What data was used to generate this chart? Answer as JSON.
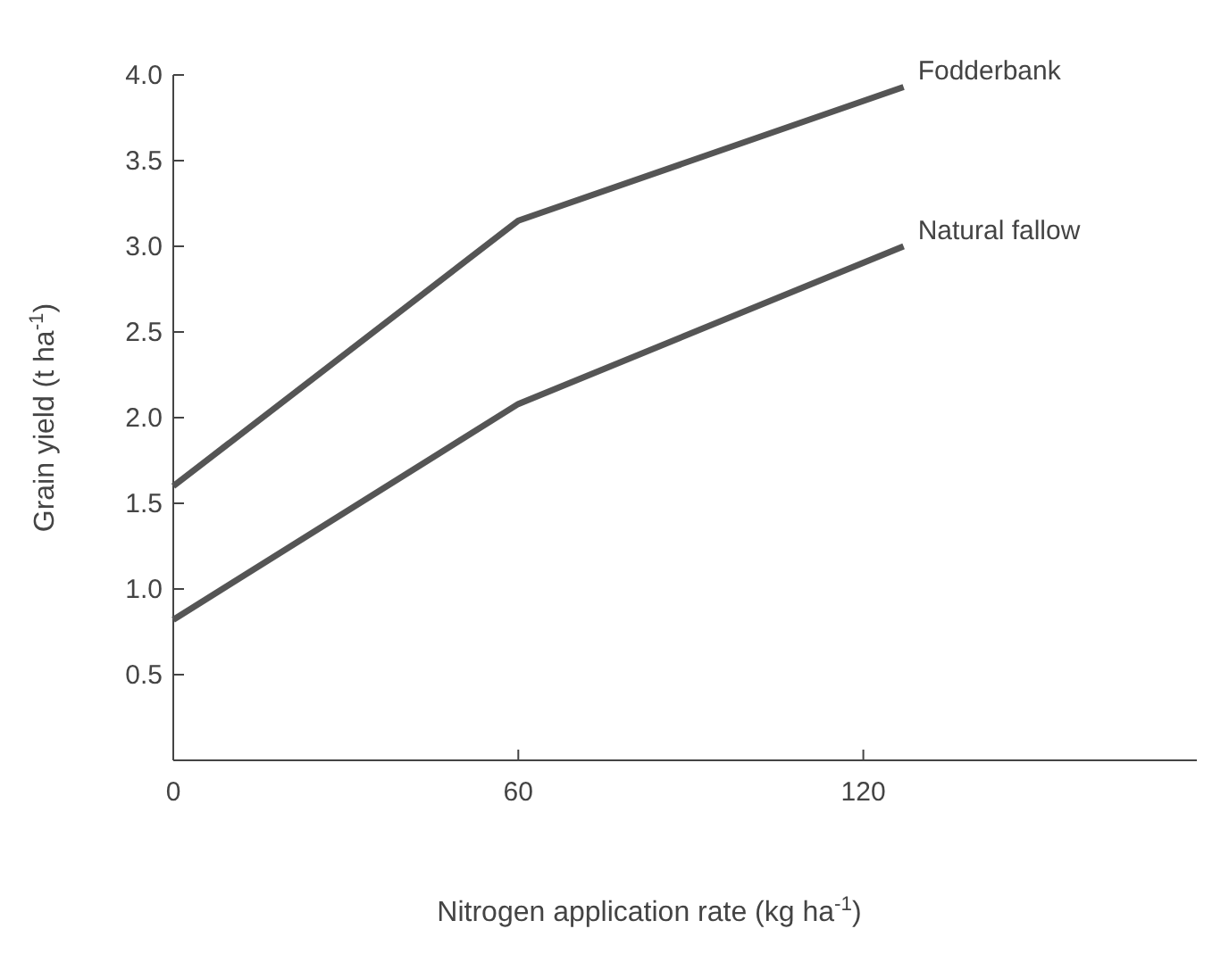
{
  "chart_data": {
    "type": "line",
    "xlabel": "Nitrogen application rate (kg ha$^{-1}$)",
    "ylabel": "Grain yield (t ha$^{-1}$)",
    "x": [
      0,
      60,
      127
    ],
    "series": [
      {
        "name": "Fodderbank",
        "color": "#555555",
        "values": [
          1.6,
          3.15,
          3.93
        ]
      },
      {
        "name": "Natural fallow",
        "color": "#555555",
        "values": [
          0.82,
          2.08,
          3.0
        ]
      }
    ],
    "xlim": [
      0,
      178
    ],
    "xticks": [
      0,
      60,
      120
    ],
    "ylim": [
      0,
      4.0
    ],
    "yticks": [
      {
        "value": 0.5,
        "label": "0.5"
      },
      {
        "value": 1.0,
        "label": "1.0"
      },
      {
        "value": 1.5,
        "label": "1.5"
      },
      {
        "value": 2.0,
        "label": "2.0"
      },
      {
        "value": 2.5,
        "label": "2.5"
      },
      {
        "value": 3.0,
        "label": "3.0"
      },
      {
        "value": 3.5,
        "label": "3.5"
      },
      {
        "value": 4.0,
        "label": "4.0"
      }
    ],
    "grid": false,
    "legend": false,
    "marker": "none",
    "line_style": "solid"
  }
}
